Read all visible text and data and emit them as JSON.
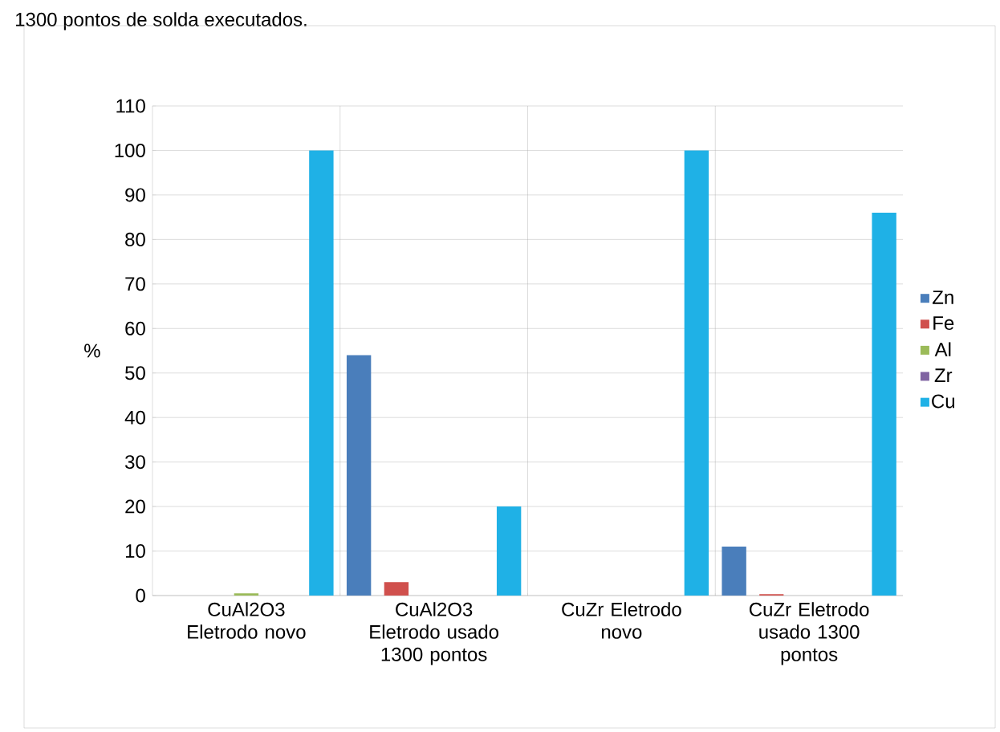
{
  "chart_data": {
    "type": "bar",
    "ylabel": "%",
    "annotations": [
      "1300 pontos de solda executados."
    ],
    "categories": [
      "CuAl2O3 Eletrodo novo",
      "CuAl2O3 Eletrodo usado 1300 pontos",
      "CuZr Eletrodo novo",
      "CuZr Eletrodo usado 1300 pontos"
    ],
    "series": [
      {
        "name": "Zn",
        "color": "#4a7ebb",
        "values": [
          0,
          54,
          0,
          11
        ]
      },
      {
        "name": "Fe",
        "color": "#d0504d",
        "values": [
          0,
          3,
          0,
          0.3
        ]
      },
      {
        "name": "Al",
        "color": "#9bbb59",
        "values": [
          0.5,
          0,
          0,
          0
        ]
      },
      {
        "name": "Zr",
        "color": "#8064a2",
        "values": [
          0,
          0,
          0,
          0
        ]
      },
      {
        "name": "Cu",
        "color": "#1fb1e6",
        "values": [
          100,
          20,
          100,
          86
        ]
      }
    ],
    "ylim": [
      0,
      110
    ],
    "yticks": [
      0,
      10,
      20,
      30,
      40,
      50,
      60,
      70,
      80,
      90,
      100,
      110
    ],
    "grid": true,
    "legend": "right"
  }
}
